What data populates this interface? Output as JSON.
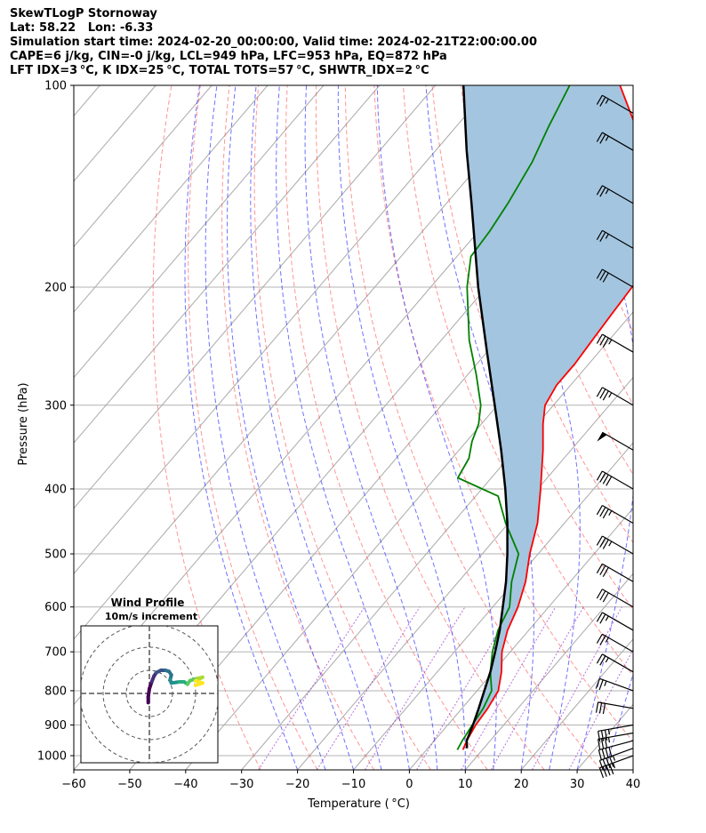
{
  "header": {
    "line1": "SkewTLogP Stornoway",
    "line2": "Lat: 58.22   Lon: -6.33",
    "line3": "Simulation start time: 2024-02-20_00:00:00, Valid time: 2024-02-21T22:00:00.00",
    "line4": "CAPE=6 j/kg, CIN=-0 j/kg, LCL=949 hPa, LFC=953 hPa, EQ=872 hPa",
    "line5": "LFT IDX=3 °C, K IDX=25 °C, TOTAL TOTS=57 °C, SHWTR_IDX=2 °C"
  },
  "chart_data": {
    "type": "skew-t",
    "xlabel": "Temperature ( °C)",
    "ylabel": "Pressure (hPa)",
    "xlim": [
      -60,
      40
    ],
    "ylim": [
      1050,
      100
    ],
    "y_scale": "log",
    "xticks": [
      -60,
      -50,
      -40,
      -30,
      -20,
      -10,
      0,
      10,
      20,
      30,
      40
    ],
    "yticks": [
      1000,
      900,
      800,
      700,
      600,
      500,
      400,
      300,
      200,
      100
    ],
    "colors": {
      "temperature": "#ff0000",
      "dewpoint": "#008000",
      "parcel": "#000000",
      "cape_fill": "#a3c5df",
      "isotherm": "#a9a9a9",
      "dry_adiabat": "#ff4d4d",
      "moist_adiabat": "#3333ff",
      "mixing_ratio": "#9933cc",
      "isobar": "#b3b3b3"
    },
    "temperature": [
      {
        "p": 980,
        "t": 6.5
      },
      {
        "p": 950,
        "t": 5.8
      },
      {
        "p": 900,
        "t": 5.0
      },
      {
        "p": 850,
        "t": 4.6
      },
      {
        "p": 800,
        "t": 3.8
      },
      {
        "p": 750,
        "t": 1.5
      },
      {
        "p": 700,
        "t": -1.5
      },
      {
        "p": 650,
        "t": -3.8
      },
      {
        "p": 600,
        "t": -5.5
      },
      {
        "p": 550,
        "t": -8.0
      },
      {
        "p": 500,
        "t": -11.5
      },
      {
        "p": 450,
        "t": -14.8
      },
      {
        "p": 400,
        "t": -19.5
      },
      {
        "p": 350,
        "t": -25.0
      },
      {
        "p": 320,
        "t": -29.0
      },
      {
        "p": 300,
        "t": -31.5
      },
      {
        "p": 280,
        "t": -32.5
      },
      {
        "p": 260,
        "t": -32.5
      },
      {
        "p": 240,
        "t": -33.0
      },
      {
        "p": 220,
        "t": -33.5
      },
      {
        "p": 200,
        "t": -34.0
      },
      {
        "p": 185,
        "t": -34.5
      },
      {
        "p": 170,
        "t": -38.0
      },
      {
        "p": 150,
        "t": -43.5
      },
      {
        "p": 130,
        "t": -51.0
      },
      {
        "p": 115,
        "t": -58.0
      },
      {
        "p": 100,
        "t": -67.0
      }
    ],
    "dewpoint": [
      {
        "p": 980,
        "t": 5.5
      },
      {
        "p": 950,
        "t": 5.0
      },
      {
        "p": 900,
        "t": 4.4
      },
      {
        "p": 850,
        "t": 3.8
      },
      {
        "p": 800,
        "t": 2.6
      },
      {
        "p": 750,
        "t": -0.5
      },
      {
        "p": 700,
        "t": -3.2
      },
      {
        "p": 650,
        "t": -5.5
      },
      {
        "p": 600,
        "t": -7.0
      },
      {
        "p": 550,
        "t": -10.5
      },
      {
        "p": 500,
        "t": -13.5
      },
      {
        "p": 450,
        "t": -20.5
      },
      {
        "p": 410,
        "t": -26.0
      },
      {
        "p": 385,
        "t": -36.0
      },
      {
        "p": 360,
        "t": -37.0
      },
      {
        "p": 340,
        "t": -39.0
      },
      {
        "p": 320,
        "t": -40.5
      },
      {
        "p": 300,
        "t": -43.0
      },
      {
        "p": 270,
        "t": -48.5
      },
      {
        "p": 240,
        "t": -55.0
      },
      {
        "p": 200,
        "t": -63.5
      },
      {
        "p": 180,
        "t": -67.5
      },
      {
        "p": 165,
        "t": -68.0
      },
      {
        "p": 150,
        "t": -69.0
      },
      {
        "p": 130,
        "t": -71.0
      },
      {
        "p": 115,
        "t": -73.5
      },
      {
        "p": 100,
        "t": -76.0
      }
    ],
    "parcel": [
      {
        "p": 975,
        "t": 7.0
      },
      {
        "p": 950,
        "t": 5.8
      },
      {
        "p": 900,
        "t": 4.5
      },
      {
        "p": 850,
        "t": 3.0
      },
      {
        "p": 800,
        "t": 1.3
      },
      {
        "p": 750,
        "t": -0.5
      },
      {
        "p": 700,
        "t": -2.7
      },
      {
        "p": 650,
        "t": -5.2
      },
      {
        "p": 600,
        "t": -8.2
      },
      {
        "p": 550,
        "t": -11.5
      },
      {
        "p": 500,
        "t": -15.5
      },
      {
        "p": 450,
        "t": -20.2
      },
      {
        "p": 400,
        "t": -25.8
      },
      {
        "p": 350,
        "t": -32.5
      },
      {
        "p": 300,
        "t": -40.5
      },
      {
        "p": 250,
        "t": -50.0
      },
      {
        "p": 200,
        "t": -61.5
      },
      {
        "p": 150,
        "t": -75.5
      },
      {
        "p": 125,
        "t": -84.5
      },
      {
        "p": 100,
        "t": -95.0
      }
    ],
    "wind_barbs": [
      {
        "p": 1000,
        "speed_kt": 45,
        "dir_deg": 290
      },
      {
        "p": 975,
        "speed_kt": 45,
        "dir_deg": 290
      },
      {
        "p": 950,
        "speed_kt": 40,
        "dir_deg": 285
      },
      {
        "p": 925,
        "speed_kt": 35,
        "dir_deg": 280
      },
      {
        "p": 900,
        "speed_kt": 35,
        "dir_deg": 280
      },
      {
        "p": 850,
        "speed_kt": 30,
        "dir_deg": 260
      },
      {
        "p": 800,
        "speed_kt": 25,
        "dir_deg": 250
      },
      {
        "p": 750,
        "speed_kt": 25,
        "dir_deg": 240
      },
      {
        "p": 700,
        "speed_kt": 25,
        "dir_deg": 240
      },
      {
        "p": 650,
        "speed_kt": 25,
        "dir_deg": 240
      },
      {
        "p": 600,
        "speed_kt": 30,
        "dir_deg": 240
      },
      {
        "p": 550,
        "speed_kt": 30,
        "dir_deg": 240
      },
      {
        "p": 500,
        "speed_kt": 35,
        "dir_deg": 240
      },
      {
        "p": 450,
        "speed_kt": 35,
        "dir_deg": 240
      },
      {
        "p": 400,
        "speed_kt": 40,
        "dir_deg": 240
      },
      {
        "p": 350,
        "speed_kt": 50,
        "dir_deg": 240
      },
      {
        "p": 300,
        "speed_kt": 35,
        "dir_deg": 240
      },
      {
        "p": 250,
        "speed_kt": 35,
        "dir_deg": 240
      },
      {
        "p": 200,
        "speed_kt": 30,
        "dir_deg": 240
      },
      {
        "p": 175,
        "speed_kt": 25,
        "dir_deg": 240
      },
      {
        "p": 150,
        "speed_kt": 25,
        "dir_deg": 240
      },
      {
        "p": 125,
        "speed_kt": 25,
        "dir_deg": 240
      },
      {
        "p": 110,
        "speed_kt": 25,
        "dir_deg": 240
      }
    ],
    "hodograph": {
      "title": "Wind Profile",
      "subtitle": "10m/s increment",
      "ring_step_ms": 10,
      "rings": 3,
      "points_ms": [
        [
          -0.5,
          -4.0
        ],
        [
          -0.5,
          -1.5
        ],
        [
          0.0,
          2.0
        ],
        [
          1.0,
          5.0
        ],
        [
          2.0,
          7.5
        ],
        [
          3.0,
          9.0
        ],
        [
          5.0,
          10.0
        ],
        [
          7.0,
          10.0
        ],
        [
          8.5,
          9.5
        ],
        [
          9.5,
          8.0
        ],
        [
          9.0,
          6.0
        ],
        [
          9.5,
          4.5
        ],
        [
          13.0,
          5.0
        ],
        [
          15.0,
          5.0
        ],
        [
          16.5,
          4.0
        ],
        [
          17.5,
          5.5
        ],
        [
          19.0,
          6.0
        ],
        [
          21.0,
          6.5
        ],
        [
          23.0,
          7.0
        ],
        [
          20.0,
          5.5
        ],
        [
          23.0,
          4.5
        ],
        [
          20.0,
          3.5
        ]
      ],
      "colormap": "viridis"
    }
  }
}
